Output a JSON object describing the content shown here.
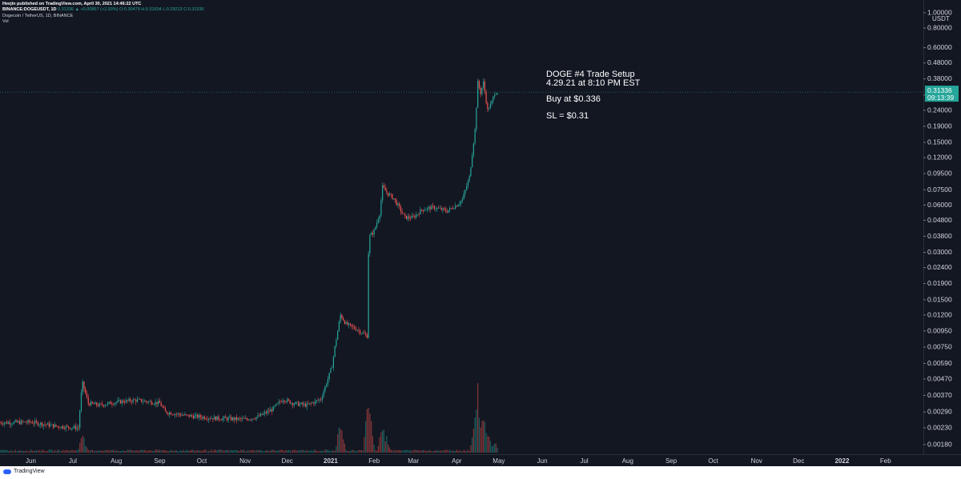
{
  "header": {
    "publisher_line": "Heejin published on TradingView.com, April 30, 2021 14:46:22 UTC",
    "symbol": "BINANCE:DOGEUSDT, 1D",
    "quote": "0.31336 ▲ +0.00857 (+2.93%)",
    "ohlc": "O:0.30479 H:0.31934 L:0.29213 C:0.31336",
    "pair_name": "Dogecoin / TetherUS, 1D, BINANCE",
    "volume_label": "Vol"
  },
  "annotation": {
    "title": "DOGE #4 Trade Setup",
    "date": "4.29.21 at 8:10 PM EST",
    "entry": "Buy at $0.336",
    "stop": "SL = $0.31"
  },
  "price_tag": {
    "price": "0.31336",
    "countdown": "09:13:39"
  },
  "footer": {
    "logo_text": "TradingView",
    "logo_icon": "tradingview-cloud-icon"
  },
  "colors": {
    "background": "#131722",
    "up": "#26a69a",
    "down": "#ef5350",
    "text": "#d1d4dc"
  },
  "chart_data": {
    "type": "candlestick",
    "symbol": "BINANCE:DOGEUSDT",
    "interval": "1D",
    "y_scale": "log",
    "ylim": [
      0.0016,
      1.0
    ],
    "y_unit": "USDT",
    "y_ticks": [
      "1.00000",
      "0.80000",
      "0.60000",
      "0.48000",
      "0.38000",
      "0.30000",
      "0.24000",
      "0.19000",
      "0.15000",
      "0.12000",
      "0.09500",
      "0.07500",
      "0.06000",
      "0.04800",
      "0.03800",
      "0.03000",
      "0.02400",
      "0.01900",
      "0.01500",
      "0.01200",
      "0.00950",
      "0.00750",
      "0.00590",
      "0.00470",
      "0.00370",
      "0.00290",
      "0.00230",
      "0.00180"
    ],
    "x_ticks": [
      "Jun",
      "Jul",
      "Aug",
      "Sep",
      "Oct",
      "Nov",
      "Dec",
      "2021",
      "Feb",
      "Mar",
      "Apr",
      "May",
      "Jun",
      "Jul",
      "Aug",
      "Sep",
      "Oct",
      "Nov",
      "Dec",
      "2022",
      "Feb"
    ],
    "x_range": [
      "2020-05-10",
      "2022-02-28"
    ],
    "last_date": "2021-04-30",
    "series": [
      {
        "name": "Price (close)",
        "points": [
          [
            "2020-05-10",
            0.00248
          ],
          [
            "2020-06-01",
            0.0025
          ],
          [
            "2020-06-20",
            0.00235
          ],
          [
            "2020-07-05",
            0.0023
          ],
          [
            "2020-07-07",
            0.0038
          ],
          [
            "2020-07-08",
            0.0044
          ],
          [
            "2020-07-12",
            0.0033
          ],
          [
            "2020-07-20",
            0.0032
          ],
          [
            "2020-08-01",
            0.00335
          ],
          [
            "2020-08-15",
            0.00345
          ],
          [
            "2020-09-01",
            0.0033
          ],
          [
            "2020-09-05",
            0.0029
          ],
          [
            "2020-09-20",
            0.00275
          ],
          [
            "2020-10-10",
            0.00265
          ],
          [
            "2020-11-01",
            0.0026
          ],
          [
            "2020-11-10",
            0.0027
          ],
          [
            "2020-11-20",
            0.003
          ],
          [
            "2020-11-28",
            0.0035
          ],
          [
            "2020-12-05",
            0.0033
          ],
          [
            "2020-12-15",
            0.0032
          ],
          [
            "2020-12-25",
            0.0035
          ],
          [
            "2020-12-30",
            0.0047
          ],
          [
            "2021-01-02",
            0.0057
          ],
          [
            "2021-01-04",
            0.0075
          ],
          [
            "2021-01-06",
            0.0095
          ],
          [
            "2021-01-08",
            0.012
          ],
          [
            "2021-01-12",
            0.0105
          ],
          [
            "2021-01-20",
            0.0097
          ],
          [
            "2021-01-27",
            0.0088
          ],
          [
            "2021-01-28",
            0.03
          ],
          [
            "2021-01-29",
            0.038
          ],
          [
            "2021-02-01",
            0.041
          ],
          [
            "2021-02-05",
            0.053
          ],
          [
            "2021-02-07",
            0.078
          ],
          [
            "2021-02-10",
            0.072
          ],
          [
            "2021-02-15",
            0.066
          ],
          [
            "2021-02-23",
            0.05
          ],
          [
            "2021-03-01",
            0.05
          ],
          [
            "2021-03-07",
            0.056
          ],
          [
            "2021-03-15",
            0.058
          ],
          [
            "2021-03-25",
            0.055
          ],
          [
            "2021-04-01",
            0.06
          ],
          [
            "2021-04-05",
            0.065
          ],
          [
            "2021-04-10",
            0.09
          ],
          [
            "2021-04-14",
            0.18
          ],
          [
            "2021-04-16",
            0.36
          ],
          [
            "2021-04-18",
            0.31
          ],
          [
            "2021-04-20",
            0.36
          ],
          [
            "2021-04-23",
            0.24
          ],
          [
            "2021-04-26",
            0.27
          ],
          [
            "2021-04-28",
            0.31
          ],
          [
            "2021-04-30",
            0.31336
          ]
        ]
      },
      {
        "name": "Vol",
        "points": [
          [
            "2020-07-07",
            0.12
          ],
          [
            "2020-07-08",
            0.25
          ],
          [
            "2021-01-08",
            0.45
          ],
          [
            "2021-01-28",
            0.75
          ],
          [
            "2021-01-29",
            0.55
          ],
          [
            "2021-02-07",
            0.35
          ],
          [
            "2021-02-10",
            0.2
          ],
          [
            "2021-04-14",
            0.4
          ],
          [
            "2021-04-16",
            0.88
          ],
          [
            "2021-04-20",
            0.55
          ],
          [
            "2021-04-23",
            0.3
          ],
          [
            "2021-04-28",
            0.15
          ]
        ]
      }
    ]
  }
}
